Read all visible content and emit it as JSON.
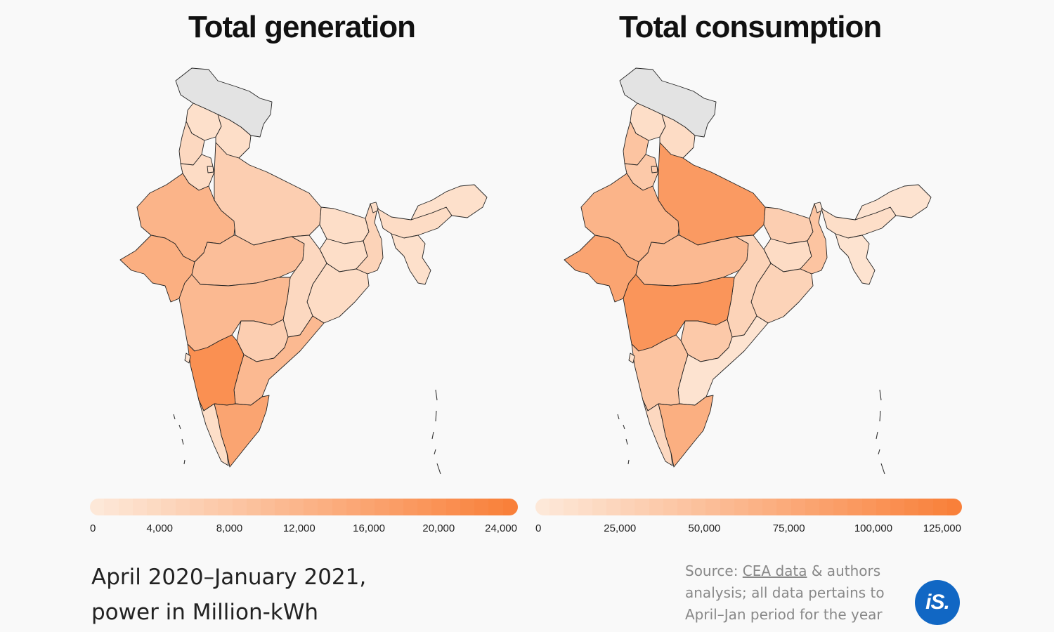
{
  "colors": {
    "scale_low": "#fde8d8",
    "scale_high": "#f9803a",
    "no_data": "#e3e3e3",
    "border": "#222222",
    "logo_bg": "#1167c4"
  },
  "maps": [
    {
      "title": "Total generation",
      "legend": {
        "min": 0,
        "max": 24500,
        "ticks": [
          "0",
          "4,000",
          "8,000",
          "12,000",
          "16,000",
          "20,000",
          "24,000"
        ],
        "tick_values": [
          0,
          4000,
          8000,
          12000,
          16000,
          20000,
          24000
        ]
      },
      "shading": {
        "jk": 0.0,
        "hp": 0.08,
        "pb": 0.15,
        "uk": 0.1,
        "hr": 0.12,
        "dl": 0.08,
        "rj": 0.5,
        "up": 0.25,
        "gj": 0.55,
        "mp": 0.4,
        "bh": 0.1,
        "jh": 0.1,
        "wb": 0.2,
        "or": 0.12,
        "cg": 0.15,
        "mh": 0.45,
        "tg": 0.25,
        "ap": 0.45,
        "ka": 0.85,
        "kl": 0.1,
        "tn": 0.65,
        "goa": 0.05,
        "sk": 0.1,
        "as": 0.12,
        "ne": 0.08
      }
    },
    {
      "title": "Total consumption",
      "legend": {
        "min": 0,
        "max": 126000,
        "ticks": [
          "0",
          "25,000",
          "50,000",
          "75,000",
          "100,000",
          "125,000"
        ],
        "tick_values": [
          0,
          25000,
          50000,
          75000,
          100000,
          125000
        ]
      },
      "shading": {
        "jk": 0.0,
        "hp": 0.1,
        "pb": 0.35,
        "uk": 0.12,
        "hr": 0.3,
        "dl": 0.25,
        "rj": 0.5,
        "up": 0.75,
        "gj": 0.65,
        "mp": 0.45,
        "bh": 0.25,
        "jh": 0.12,
        "wb": 0.35,
        "or": 0.2,
        "cg": 0.2,
        "mh": 0.8,
        "tg": 0.3,
        "ap": 0.05,
        "ka": 0.35,
        "kl": 0.15,
        "tn": 0.55,
        "goa": 0.05,
        "sk": 0.05,
        "as": 0.1,
        "ne": 0.05
      }
    }
  ],
  "subtitle_line1": "April 2020–January 2021,",
  "subtitle_line2": "power in Million-kWh",
  "source": {
    "prefix": "Source: ",
    "link": "CEA data",
    "rest": " & authors analysis; all data pertains to April–Jan period for the year"
  },
  "logo_text": "iS."
}
